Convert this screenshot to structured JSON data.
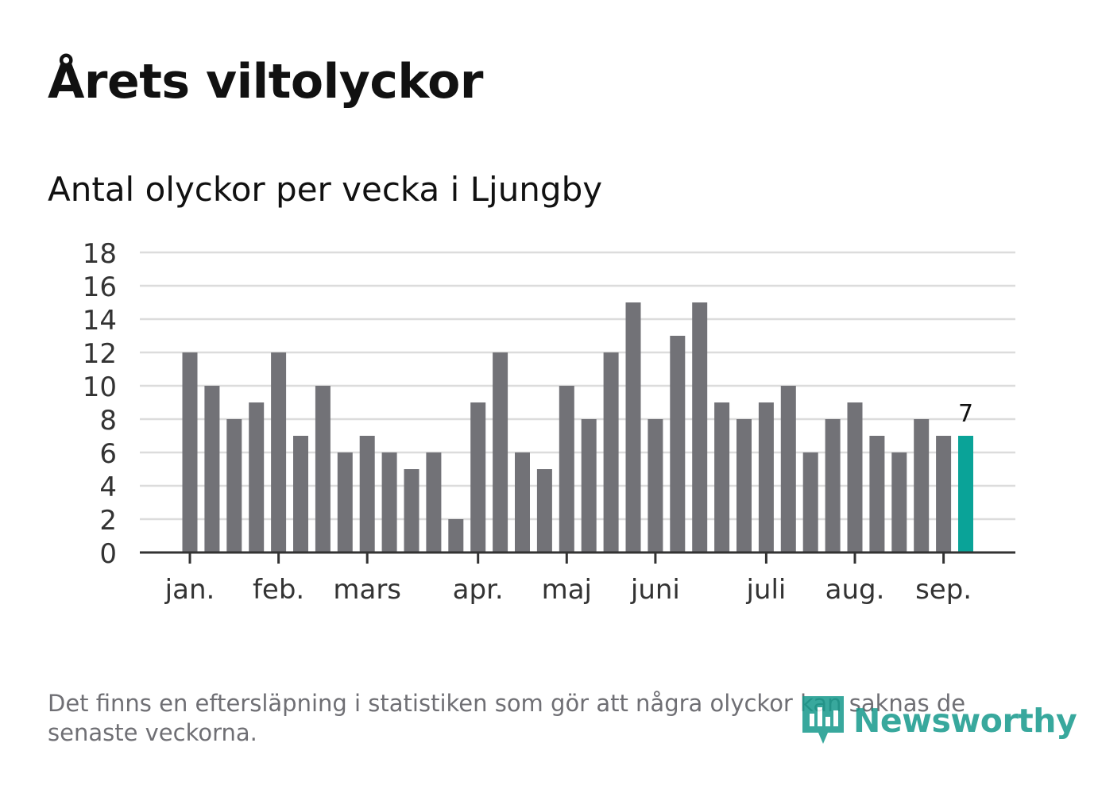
{
  "title": "Årets viltolyckor",
  "subtitle": "Antal olyckor per vecka i Ljungby",
  "footnote": "Det finns en eftersläpning i statistiken som gör att några olyckor kan saknas de senaste veckorna.",
  "brand": {
    "name": "Newsworthy",
    "color": "#169a8c",
    "icon": "newsworthy-logo-icon"
  },
  "colors": {
    "bar": "#727277",
    "highlight": "#0aa398",
    "grid": "#dcdcdc",
    "axis": "#333333",
    "text": "#333333"
  },
  "chart_data": {
    "type": "bar",
    "title": "Årets viltolyckor",
    "subtitle": "Antal olyckor per vecka i Ljungby",
    "xlabel": "",
    "ylabel": "",
    "ylim": [
      0,
      18
    ],
    "yticks": [
      0,
      2,
      4,
      6,
      8,
      10,
      12,
      14,
      16,
      18
    ],
    "grid": true,
    "x_unit": "week",
    "values": [
      12,
      10,
      8,
      9,
      12,
      7,
      10,
      6,
      7,
      6,
      5,
      6,
      2,
      9,
      12,
      6,
      5,
      10,
      8,
      12,
      15,
      8,
      13,
      15,
      9,
      8,
      9,
      10,
      6,
      8,
      9,
      7,
      6,
      8,
      7,
      7
    ],
    "highlight_index": 35,
    "highlight_label": "7",
    "month_ticks": [
      {
        "label": "jan.",
        "week": 0
      },
      {
        "label": "feb.",
        "week": 4
      },
      {
        "label": "mars",
        "week": 8
      },
      {
        "label": "apr.",
        "week": 13
      },
      {
        "label": "maj",
        "week": 17
      },
      {
        "label": "juni",
        "week": 21
      },
      {
        "label": "juli",
        "week": 26
      },
      {
        "label": "aug.",
        "week": 30
      },
      {
        "label": "sep.",
        "week": 34
      }
    ]
  }
}
